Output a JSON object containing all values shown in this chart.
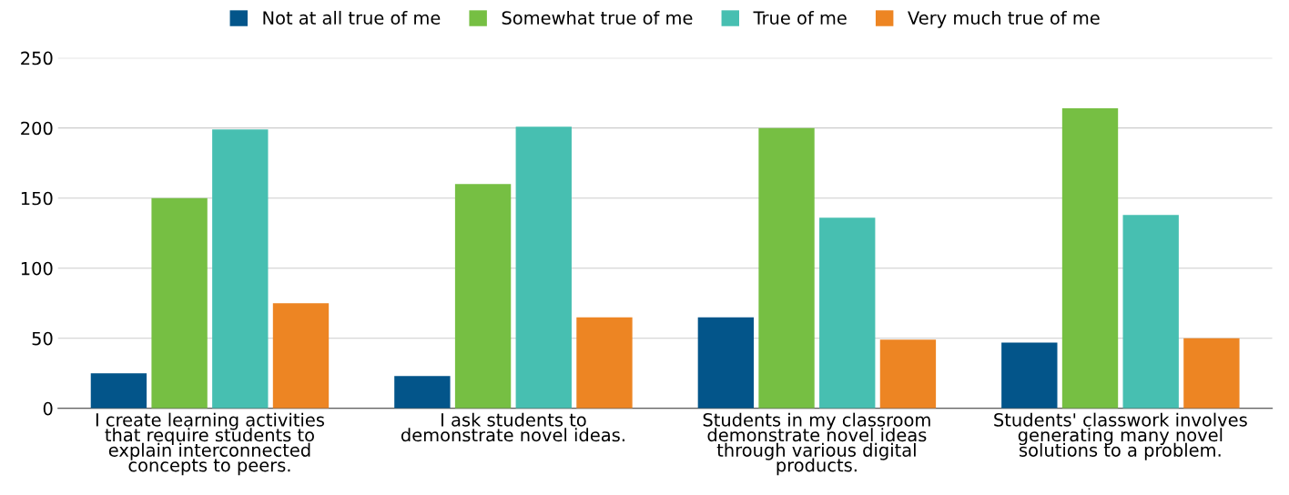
{
  "chart_data": {
    "type": "bar",
    "categories": [
      "I create learning activities that require students to explain interconnected concepts to peers.",
      "I ask students to demonstrate novel ideas.",
      "Students in my classroom demonstrate novel ideas through various digital products.",
      "Students' classwork involves generating many novel solutions to a problem."
    ],
    "series": [
      {
        "name": "Not at all true of me",
        "color": "#03558a",
        "values": [
          25,
          23,
          65,
          47
        ]
      },
      {
        "name": "Somewhat true of me",
        "color": "#76bf43",
        "values": [
          150,
          160,
          200,
          214
        ]
      },
      {
        "name": "True of me",
        "color": "#47bfb1",
        "values": [
          199,
          201,
          136,
          138
        ]
      },
      {
        "name": "Very much true of me",
        "color": "#ed8523",
        "values": [
          75,
          65,
          49,
          50
        ]
      }
    ],
    "ylim": [
      0,
      250
    ],
    "yticks": [
      0,
      50,
      100,
      150,
      200,
      250
    ],
    "grid": "y",
    "legend": "top"
  }
}
